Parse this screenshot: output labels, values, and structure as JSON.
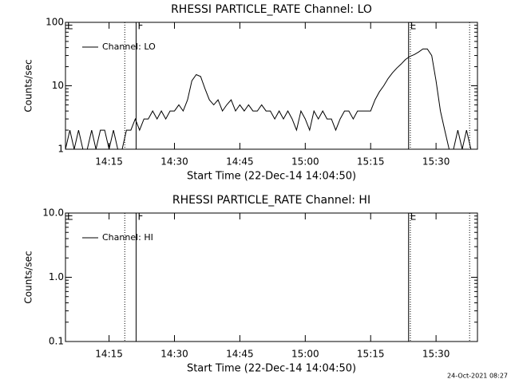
{
  "chart_data": [
    {
      "type": "line",
      "title": "RHESSI PARTICLE_RATE Channel: LO",
      "ylabel": "Counts/sec",
      "xlabel": "Start Time (22-Dec-14 14:04:50)",
      "log_y": true,
      "ylim": [
        1,
        100
      ],
      "yticks": [
        1,
        10,
        100
      ],
      "xlim": [
        845,
        939.5
      ],
      "xticks": [
        {
          "value": 855,
          "label": "14:15"
        },
        {
          "value": 870,
          "label": "14:30"
        },
        {
          "value": 885,
          "label": "14:45"
        },
        {
          "value": 900,
          "label": "15:00"
        },
        {
          "value": 915,
          "label": "15:15"
        },
        {
          "value": 930,
          "label": "15:30"
        }
      ],
      "flag_lines": [
        {
          "x": 858.6,
          "style": "dotted"
        },
        {
          "x": 861.2,
          "style": "solid"
        },
        {
          "x": 923.7,
          "style": "solid"
        },
        {
          "x": 924.1,
          "style": "dotted"
        },
        {
          "x": 937.7,
          "style": "dotted"
        }
      ],
      "flags": [
        {
          "x": 845,
          "label": "E"
        },
        {
          "x": 861.2,
          "label": "F"
        },
        {
          "x": 923.7,
          "label": "E"
        }
      ],
      "legend": "upper left",
      "x": [
        845,
        846,
        847,
        848,
        849,
        850,
        851,
        852,
        853,
        854,
        855,
        856,
        857,
        858,
        859,
        860,
        861,
        862,
        863,
        864,
        865,
        866,
        867,
        868,
        869,
        870,
        871,
        872,
        873,
        874,
        875,
        876,
        877,
        878,
        879,
        880,
        881,
        882,
        883,
        884,
        885,
        886,
        887,
        888,
        889,
        890,
        891,
        892,
        893,
        894,
        895,
        896,
        897,
        898,
        899,
        900,
        901,
        902,
        903,
        904,
        905,
        906,
        907,
        908,
        909,
        910,
        911,
        912,
        913,
        914,
        915,
        916,
        917,
        918,
        919,
        920,
        921,
        922,
        923,
        924,
        925,
        926,
        927,
        928,
        929,
        930,
        931,
        932,
        933,
        934,
        935,
        936,
        937,
        938
      ],
      "series": [
        {
          "name": "Channel: LO",
          "color": "#000000",
          "values": [
            1,
            2,
            1,
            2,
            1,
            1,
            2,
            1,
            2,
            2,
            1,
            2,
            1,
            1,
            2,
            2,
            3,
            2,
            3,
            3,
            4,
            3,
            4,
            3,
            4,
            4,
            5,
            4,
            6,
            12,
            15,
            14,
            9,
            6,
            5,
            6,
            4,
            5,
            6,
            4,
            5,
            4,
            5,
            4,
            4,
            5,
            4,
            4,
            3,
            4,
            3,
            4,
            3,
            2,
            4,
            3,
            2,
            4,
            3,
            4,
            3,
            3,
            2,
            3,
            4,
            4,
            3,
            4,
            4,
            4,
            4,
            6,
            8,
            10,
            13,
            16,
            19,
            22,
            26,
            29,
            31,
            34,
            38,
            38,
            30,
            12,
            4,
            2,
            1,
            1,
            2,
            1,
            2,
            1
          ]
        }
      ]
    },
    {
      "type": "line",
      "title": "RHESSI PARTICLE_RATE Channel: HI",
      "ylabel": "Counts/sec",
      "xlabel": "Start Time (22-Dec-14 14:04:50)",
      "log_y": true,
      "ylim": [
        0.1,
        10
      ],
      "yticks": [
        0.1,
        {
          "value": 1,
          "label": "1.0"
        },
        {
          "value": 10,
          "label": "10.0"
        }
      ],
      "xlim": [
        845,
        939.5
      ],
      "xticks": [
        {
          "value": 855,
          "label": "14:15"
        },
        {
          "value": 870,
          "label": "14:30"
        },
        {
          "value": 885,
          "label": "14:45"
        },
        {
          "value": 900,
          "label": "15:00"
        },
        {
          "value": 915,
          "label": "15:15"
        },
        {
          "value": 930,
          "label": "15:30"
        }
      ],
      "flag_lines": [
        {
          "x": 858.6,
          "style": "dotted"
        },
        {
          "x": 861.2,
          "style": "solid"
        },
        {
          "x": 923.7,
          "style": "solid"
        },
        {
          "x": 924.1,
          "style": "dotted"
        },
        {
          "x": 937.7,
          "style": "dotted"
        }
      ],
      "flags": [
        {
          "x": 845,
          "label": "E"
        },
        {
          "x": 861.2,
          "label": "F"
        },
        {
          "x": 923.7,
          "label": "E"
        }
      ],
      "legend": "upper left",
      "x": [],
      "series": [
        {
          "name": "Channel: HI",
          "color": "#000000",
          "values": []
        }
      ]
    }
  ],
  "footer": "24-Oct-2021 08:27"
}
